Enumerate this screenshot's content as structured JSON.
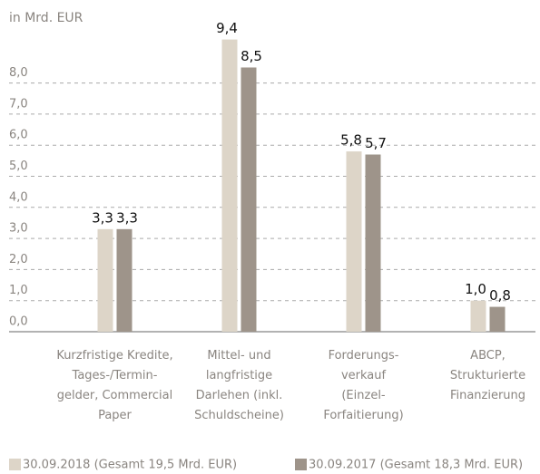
{
  "chart_data": {
    "type": "bar",
    "title": "in Mrd. EUR",
    "categories": [
      "Kurzfristige Kredite,\nTages-/Termin-\ngelder, Commercial\nPaper",
      "Mittel- und\nlangfristige\nDarlehen (inkl.\nSchuldscheine)",
      "Forderungs-\nverkauf\n(Einzel-\nForfaitierung)",
      "ABCP,\nStrukturierte\nFinanzierung"
    ],
    "series": [
      {
        "name": "30.09.2018 (Gesamt 19,5 Mrd. EUR)",
        "color": "#ddd5c8",
        "values": [
          3.3,
          9.4,
          5.8,
          1.0
        ],
        "value_labels": [
          "3,3",
          "9,4",
          "5,8",
          "1,0"
        ]
      },
      {
        "name": "30.09.2017 (Gesamt 18,3 Mrd. EUR)",
        "color": "#9e948a",
        "values": [
          3.3,
          8.5,
          5.7,
          0.8
        ],
        "value_labels": [
          "3,3",
          "8,5",
          "5,7",
          "0,8"
        ]
      }
    ],
    "ylim": [
      0,
      9.4
    ],
    "yticks": [
      {
        "value": 0,
        "label": "0,0"
      },
      {
        "value": 1,
        "label": "1,0"
      },
      {
        "value": 2,
        "label": "2,0"
      },
      {
        "value": 3,
        "label": "3,0"
      },
      {
        "value": 4,
        "label": "4,0"
      },
      {
        "value": 5,
        "label": "5,0"
      },
      {
        "value": 6,
        "label": "6,0"
      },
      {
        "value": 7,
        "label": "7,0"
      },
      {
        "value": 8,
        "label": "8,0"
      }
    ],
    "grid": true
  }
}
